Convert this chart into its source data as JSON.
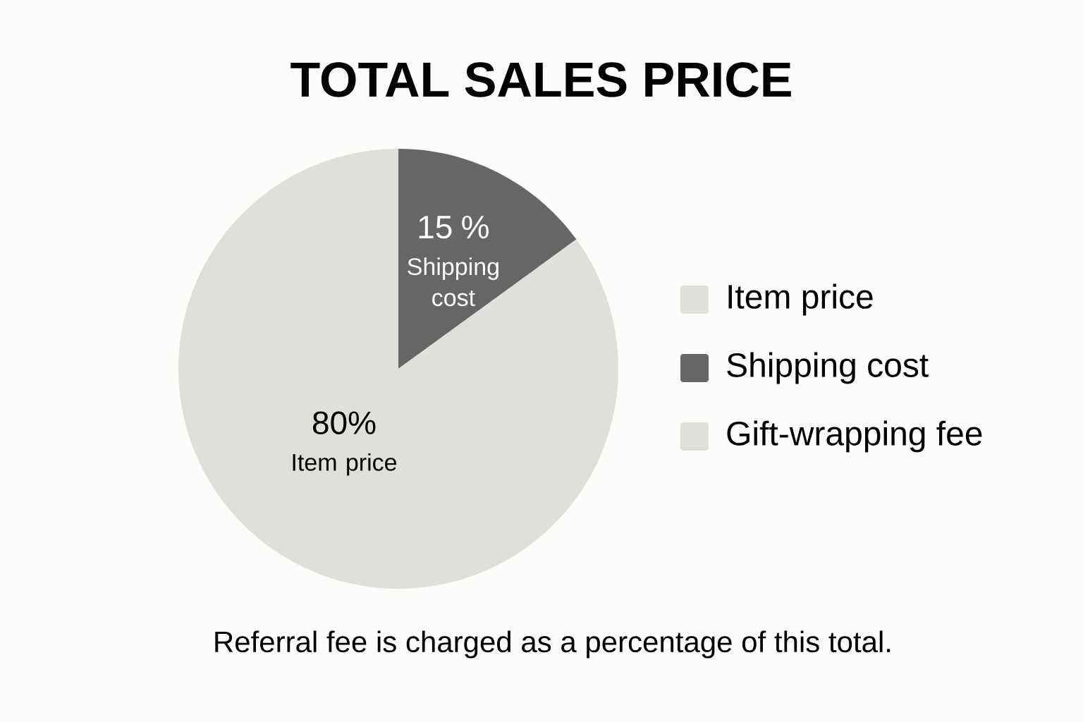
{
  "chart_data": {
    "type": "pie",
    "title": "TOTAL SALES PRICE",
    "categories": [
      "Item price",
      "Shipping cost",
      "Gift-wrapping fee"
    ],
    "values": [
      80,
      15,
      5
    ],
    "colors": [
      "#e0dfdc",
      "#666666",
      "#e0dfdc"
    ],
    "value_labels": [
      "80%",
      "15 %",
      null
    ],
    "legend": "right",
    "annotations": [
      "Referral fee is charged as a percentage of this total."
    ]
  }
}
